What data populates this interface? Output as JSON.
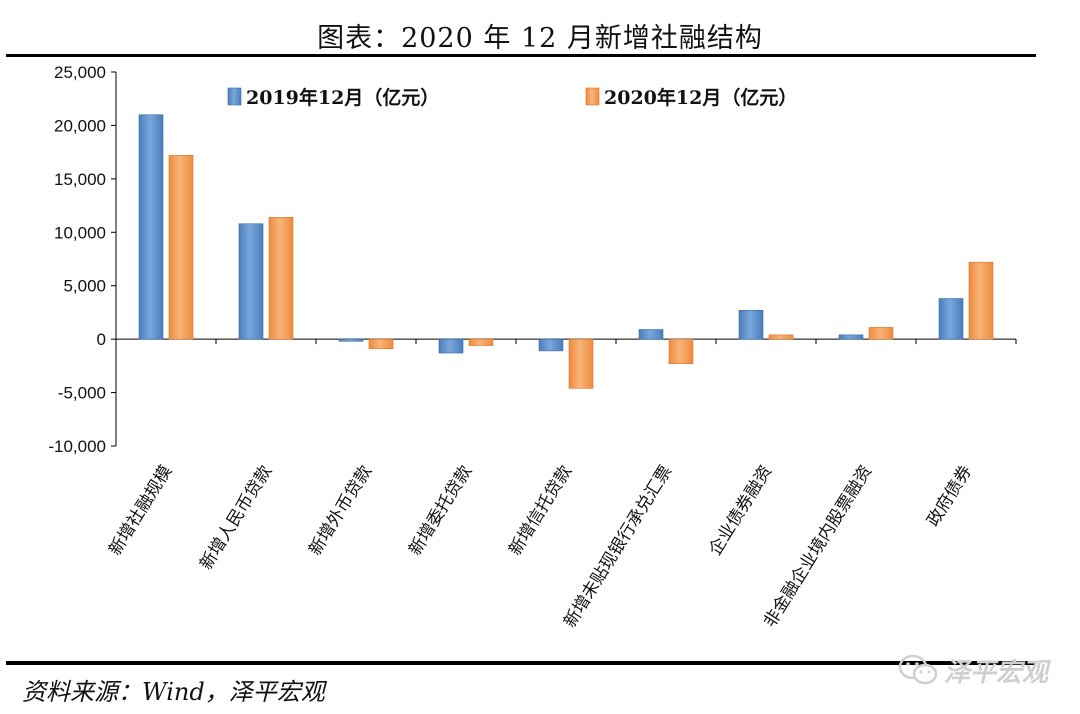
{
  "title": "图表：2020 年 12 月新增社融结构",
  "source": "资料来源：Wind，泽平宏观",
  "watermark": {
    "text": "泽平宏观",
    "icon": "wechat-icon"
  },
  "colors": {
    "series1": "#4a7ebb",
    "series2": "#f08a3c"
  },
  "chart_data": {
    "type": "bar",
    "title": "",
    "xlabel": "",
    "ylabel": "",
    "ylim": [
      -10000,
      25000
    ],
    "yticks": [
      -10000,
      -5000,
      0,
      5000,
      10000,
      15000,
      20000,
      25000
    ],
    "ytick_labels": [
      "-10,000",
      "-5,000",
      "0",
      "5,000",
      "10,000",
      "15,000",
      "20,000",
      "25,000"
    ],
    "grid": false,
    "legend_position": "top",
    "categories": [
      "新增社融规模",
      "新增人民币贷款",
      "新增外币贷款",
      "新增委托贷款",
      "新增信托贷款",
      "新增未贴现银行承兑汇票",
      "企业债券融资",
      "非金融企业境内股票融资",
      "政府债券"
    ],
    "series": [
      {
        "name": "2019年12月（亿元）",
        "values": [
          21000,
          10800,
          -200,
          -1300,
          -1100,
          900,
          2700,
          400,
          3800
        ]
      },
      {
        "name": "2020年12月（亿元）",
        "values": [
          17200,
          11400,
          -900,
          -600,
          -4600,
          -2300,
          400,
          1100,
          7200
        ]
      }
    ]
  }
}
